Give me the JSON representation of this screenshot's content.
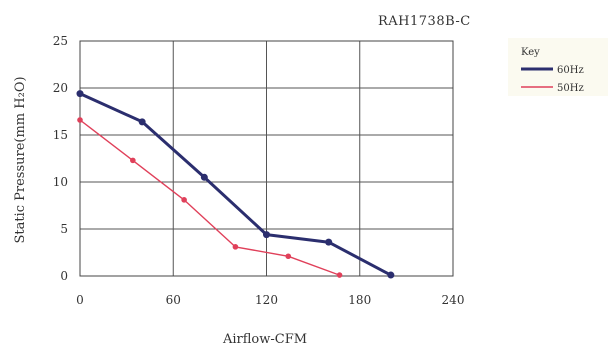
{
  "chart_data": {
    "type": "line",
    "title": "RAH1738B-C",
    "xlabel": "Airflow-CFM",
    "ylabel": "Static Pressure(mm H₂O)",
    "xlim": [
      0,
      240
    ],
    "ylim": [
      0,
      25
    ],
    "xticks": [
      0,
      60,
      120,
      180,
      240
    ],
    "yticks": [
      0,
      5,
      10,
      15,
      20,
      25
    ],
    "grid": true,
    "legend": {
      "title": "Key",
      "placement": "right"
    },
    "series": [
      {
        "name": "60Hz",
        "color": "#2b2e6e",
        "points": [
          [
            0,
            19.4
          ],
          [
            40,
            16.4
          ],
          [
            80,
            10.5
          ],
          [
            120,
            4.4
          ],
          [
            160,
            3.6
          ],
          [
            200,
            0.1
          ]
        ]
      },
      {
        "name": "50Hz",
        "color": "#e0405a",
        "points": [
          [
            0,
            16.6
          ],
          [
            34,
            12.3
          ],
          [
            67,
            8.1
          ],
          [
            100,
            3.1
          ],
          [
            134,
            2.1
          ],
          [
            167,
            0.1
          ]
        ]
      }
    ]
  }
}
